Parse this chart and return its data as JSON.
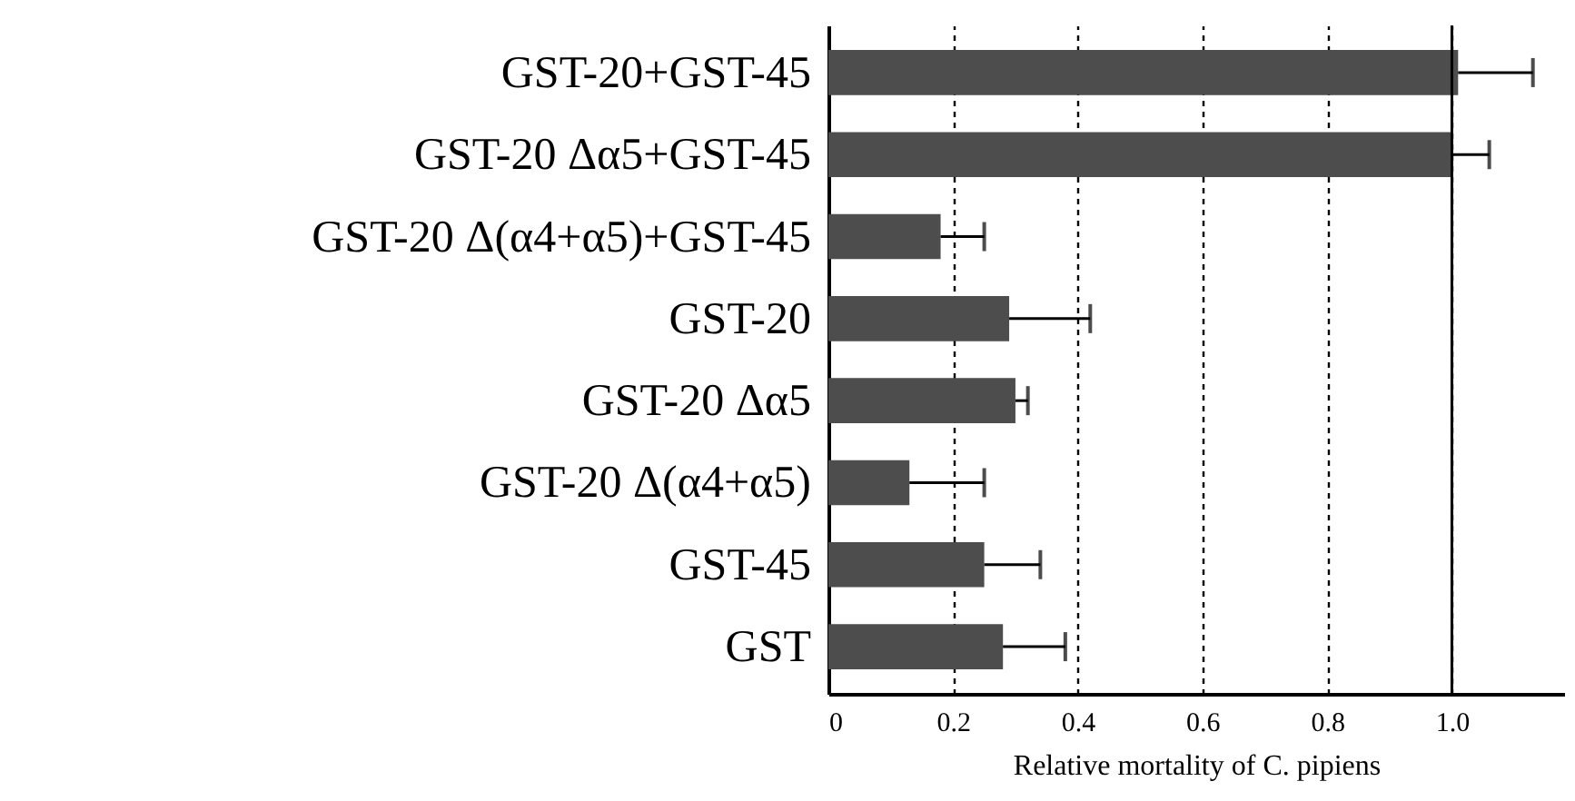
{
  "chart_data": {
    "type": "bar",
    "orientation": "horizontal",
    "xlabel": "Relative mortality of C. pipiens",
    "categories": [
      "GST-20+GST-45",
      "GST-20 Δα5+GST-45",
      "GST-20 Δ(α4+α5)+GST-45",
      "GST-20",
      "GST-20 Δα5",
      "GST-20 Δ(α4+α5)",
      "GST-45",
      "GST"
    ],
    "values": [
      1.01,
      1.0,
      0.18,
      0.29,
      0.3,
      0.13,
      0.25,
      0.28
    ],
    "errors": [
      [
        1.01,
        1.13
      ],
      [
        1.0,
        1.06
      ],
      [
        0.18,
        0.25
      ],
      [
        0.29,
        0.42
      ],
      [
        0.3,
        0.32
      ],
      [
        0.13,
        0.25
      ],
      [
        0.25,
        0.34
      ],
      [
        0.28,
        0.38
      ]
    ],
    "color": "#4d4d4d",
    "xlim": [
      0,
      1.18
    ],
    "xticks": [
      0,
      0.2,
      0.4,
      0.6,
      0.8,
      {
        "value": 1,
        "label": "1.0"
      }
    ],
    "grid": "x",
    "ref_lines": [
      {
        "axis": "x",
        "value": 1,
        "label": null,
        "color": "#000000",
        "line_style": "solid"
      }
    ]
  }
}
